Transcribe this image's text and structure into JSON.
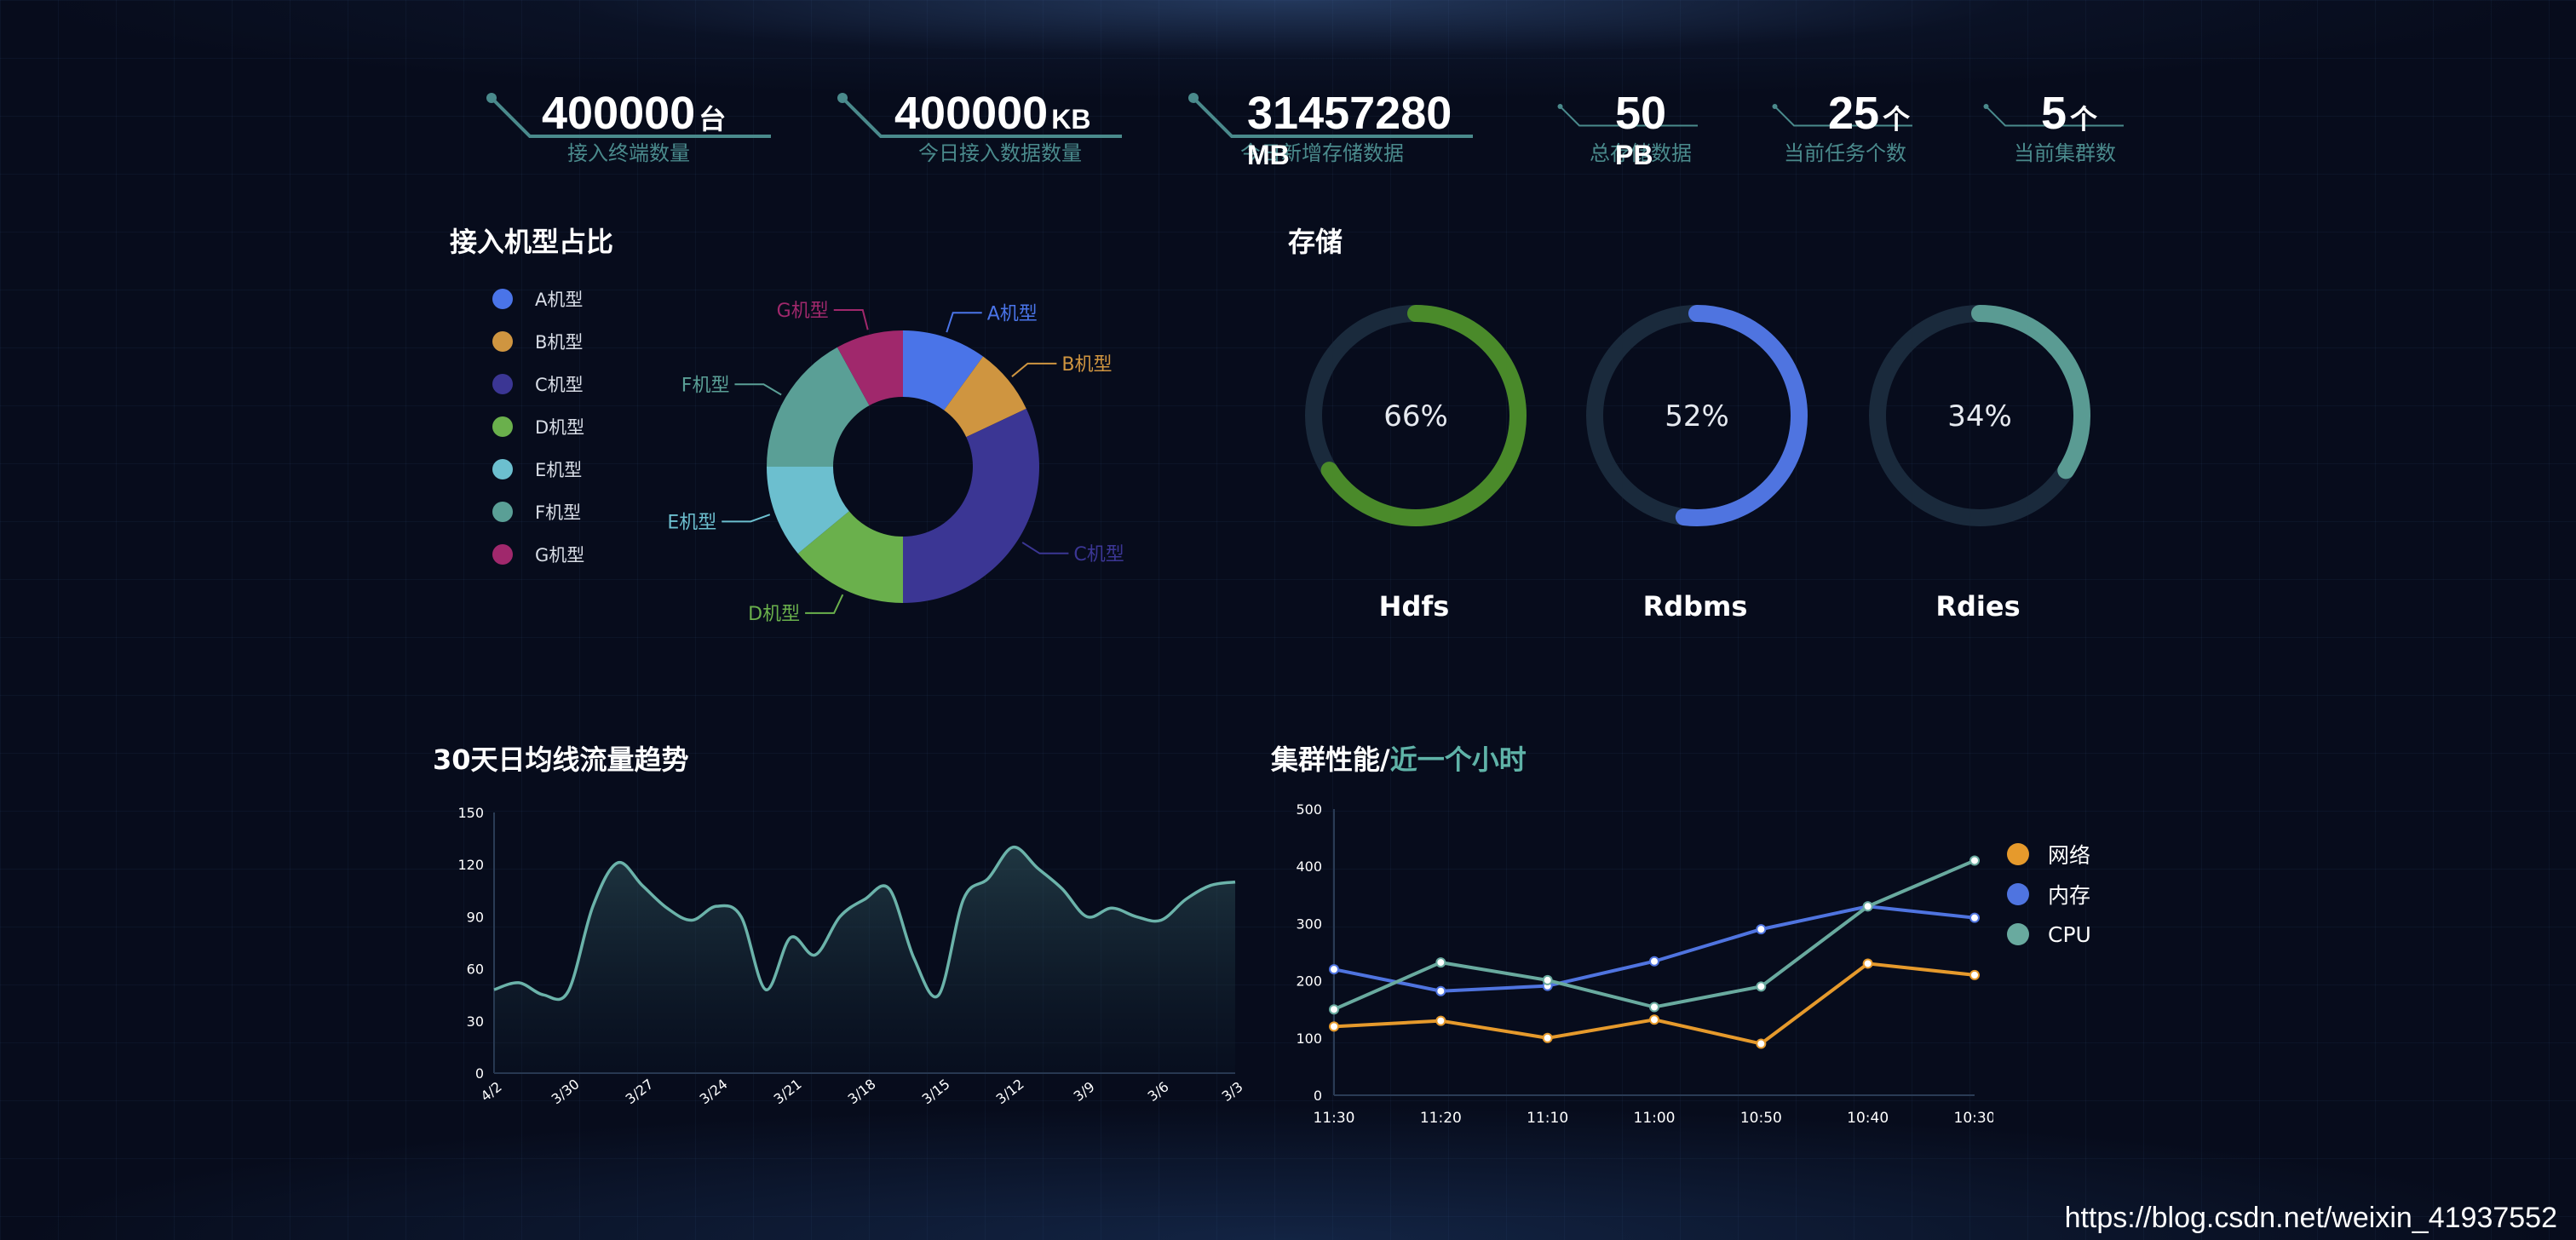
{
  "stats": [
    {
      "value": "400000",
      "unit": "台",
      "label": "接入终端数量"
    },
    {
      "value": "400000",
      "unit": "KB",
      "label": "今日接入数据数量"
    },
    {
      "value": "31457280",
      "unit": "MB",
      "label": "今日新增存储数据"
    },
    {
      "value": "50",
      "unit": "PB",
      "label": "总存储数据"
    },
    {
      "value": "25",
      "unit": "个",
      "label": "当前任务个数"
    },
    {
      "value": "5",
      "unit": "个",
      "label": "当前集群数"
    }
  ],
  "titles": {
    "pie": "接入机型占比",
    "storage": "存储",
    "trend": "30天日均线流量趋势",
    "perf_main": "集群性能/",
    "perf_accent": "近一个小时"
  },
  "colors": {
    "A": "#4a74e8",
    "B": "#cf9540",
    "C": "#3b3694",
    "D": "#6ab04c",
    "E": "#6cbfcf",
    "F": "#5a9f96",
    "G": "#a0286c",
    "trend_line": "#6bb3aa",
    "net": "#e69a2c",
    "mem": "#4f74e0",
    "cpu": "#69aa9f"
  },
  "pie_legend": [
    {
      "label": "A机型",
      "icon": "legend-dot-icon",
      "color": "#4a74e8"
    },
    {
      "label": "B机型",
      "icon": "legend-dot-icon",
      "color": "#cf9540"
    },
    {
      "label": "C机型",
      "icon": "legend-dot-icon",
      "color": "#3b3694"
    },
    {
      "label": "D机型",
      "icon": "legend-dot-icon",
      "color": "#6ab04c"
    },
    {
      "label": "E机型",
      "icon": "legend-dot-icon",
      "color": "#6cbfcf"
    },
    {
      "label": "F机型",
      "icon": "legend-dot-icon",
      "color": "#5a9f96"
    },
    {
      "label": "G机型",
      "icon": "legend-dot-icon",
      "color": "#a0286c"
    }
  ],
  "gauges": [
    {
      "name": "Hdfs",
      "percent": 66,
      "text": "66%",
      "color": "#4a8a2a"
    },
    {
      "name": "Rdbms",
      "percent": 52,
      "text": "52%",
      "color": "#4f74e0"
    },
    {
      "name": "Rdies",
      "percent": 34,
      "text": "34%",
      "color": "#5a9b93"
    }
  ],
  "perf_legend": [
    {
      "label": "网络",
      "color": "#e69a2c"
    },
    {
      "label": "内存",
      "color": "#4f74e0"
    },
    {
      "label": "CPU",
      "color": "#69aa9f"
    }
  ],
  "watermark": "https://blog.csdn.net/weixin_41937552",
  "chart_data": [
    {
      "type": "pie",
      "title": "接入机型占比",
      "categories": [
        "A机型",
        "B机型",
        "C机型",
        "D机型",
        "E机型",
        "F机型",
        "G机型"
      ],
      "values": [
        10,
        8,
        32,
        14,
        11,
        17,
        8
      ],
      "legend": "left"
    },
    {
      "type": "area",
      "title": "30天日均线流量趋势",
      "categories": [
        "4/2",
        "3/30",
        "3/27",
        "3/24",
        "3/21",
        "3/18",
        "3/15",
        "3/12",
        "3/9",
        "3/6",
        "3/3"
      ],
      "x": [
        0,
        1,
        2,
        3,
        4,
        5,
        6,
        7,
        8,
        9,
        10,
        11,
        12,
        13,
        14,
        15,
        16,
        17,
        18,
        19,
        20,
        21,
        22,
        23,
        24,
        25,
        26,
        27,
        28,
        29,
        30
      ],
      "values": [
        48,
        52,
        45,
        47,
        96,
        121,
        108,
        95,
        88,
        96,
        90,
        48,
        78,
        68,
        90,
        100,
        106,
        66,
        45,
        100,
        112,
        130,
        118,
        106,
        90,
        95,
        90,
        88,
        100,
        108,
        110
      ],
      "yticks": [
        0,
        30,
        60,
        90,
        120,
        150
      ],
      "ylim": [
        0,
        150
      ],
      "grid": false
    },
    {
      "type": "line",
      "title": "集群性能/近一个小时",
      "categories": [
        "11:30",
        "11:20",
        "11:10",
        "11:00",
        "10:50",
        "10:40",
        "10:30"
      ],
      "series": [
        {
          "name": "网络",
          "values": [
            120,
            130,
            100,
            132,
            90,
            230,
            210
          ]
        },
        {
          "name": "内存",
          "values": [
            220,
            182,
            191,
            234,
            290,
            330,
            310
          ]
        },
        {
          "name": "CPU",
          "values": [
            150,
            232,
            201,
            154,
            190,
            330,
            410
          ]
        }
      ],
      "yticks": [
        0,
        100,
        200,
        300,
        400,
        500
      ],
      "ylim": [
        0,
        500
      ],
      "legend": "right"
    }
  ]
}
